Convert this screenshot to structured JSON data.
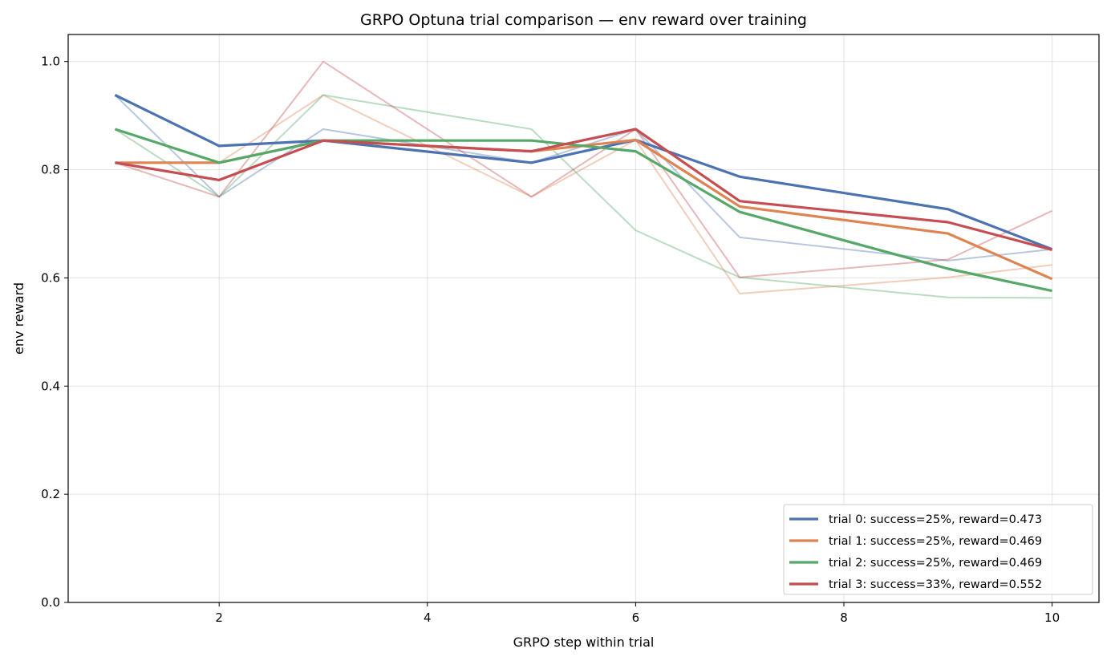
{
  "chart_data": {
    "type": "line",
    "title": "GRPO Optuna trial comparison — env reward over training",
    "xlabel": "GRPO step within trial",
    "ylabel": "env reward",
    "xlim": [
      0.55,
      10.45
    ],
    "ylim": [
      0.0,
      1.05
    ],
    "x_ticks": [
      2,
      4,
      6,
      8,
      10
    ],
    "y_ticks": [
      0.0,
      0.2,
      0.4,
      0.6,
      0.8,
      1.0
    ],
    "x_tick_labels": [
      "2",
      "4",
      "6",
      "8",
      "10"
    ],
    "y_tick_labels": [
      "0.0",
      "0.2",
      "0.4",
      "0.6",
      "0.8",
      "1.0"
    ],
    "grid": true,
    "legend_position": "bottom-right",
    "series": [
      {
        "name": "trial 0: success=25%, reward=0.473",
        "color": "#4c72b0",
        "style": "smoothed",
        "x": [
          1,
          2,
          3,
          5,
          6,
          7,
          9,
          10
        ],
        "y": [
          0.938,
          0.844,
          0.854,
          0.813,
          0.855,
          0.787,
          0.727,
          0.653
        ]
      },
      {
        "name": "trial 1: success=25%, reward=0.469",
        "color": "#dd8452",
        "style": "smoothed",
        "x": [
          1,
          2,
          3,
          5,
          6,
          7,
          9,
          10
        ],
        "y": [
          0.813,
          0.813,
          0.854,
          0.834,
          0.855,
          0.732,
          0.682,
          0.598
        ]
      },
      {
        "name": "trial 2: success=25%, reward=0.469",
        "color": "#55a868",
        "style": "smoothed",
        "x": [
          1,
          2,
          3,
          5,
          6,
          7,
          9,
          10
        ],
        "y": [
          0.875,
          0.813,
          0.854,
          0.854,
          0.834,
          0.722,
          0.617,
          0.576
        ]
      },
      {
        "name": "trial 3: success=33%, reward=0.552",
        "color": "#c44e52",
        "style": "smoothed",
        "x": [
          1,
          2,
          3,
          5,
          6,
          7,
          9,
          10
        ],
        "y": [
          0.813,
          0.781,
          0.854,
          0.834,
          0.875,
          0.742,
          0.703,
          0.652
        ]
      },
      {
        "color": "#4c72b0",
        "style": "raw",
        "x": [
          1,
          2,
          3,
          5,
          6,
          7,
          9,
          10
        ],
        "y": [
          0.938,
          0.75,
          0.875,
          0.813,
          0.875,
          0.675,
          0.632,
          0.653
        ]
      },
      {
        "color": "#dd8452",
        "style": "raw",
        "x": [
          1,
          2,
          3,
          5,
          6,
          7,
          9,
          10
        ],
        "y": [
          0.813,
          0.813,
          0.938,
          0.75,
          0.855,
          0.571,
          0.601,
          0.624
        ]
      },
      {
        "color": "#55a868",
        "style": "raw",
        "x": [
          1,
          2,
          3,
          5,
          6,
          7,
          9,
          10
        ],
        "y": [
          0.875,
          0.75,
          0.938,
          0.875,
          0.688,
          0.601,
          0.564,
          0.563
        ]
      },
      {
        "color": "#c44e52",
        "style": "raw",
        "x": [
          1,
          2,
          3,
          5,
          6,
          7,
          9,
          10
        ],
        "y": [
          0.813,
          0.75,
          1.0,
          0.75,
          0.875,
          0.601,
          0.634,
          0.724
        ]
      }
    ]
  }
}
